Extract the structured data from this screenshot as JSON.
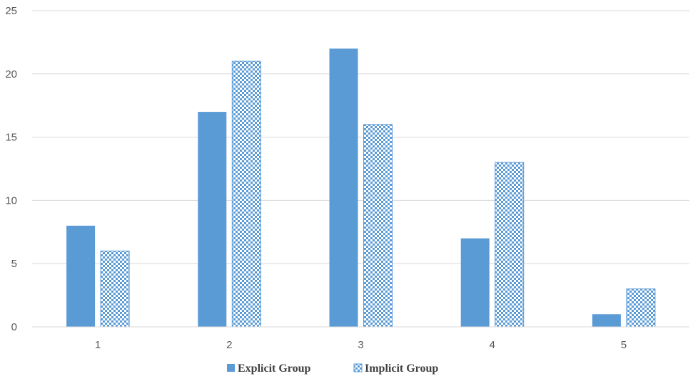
{
  "chart_data": {
    "type": "bar",
    "title": "",
    "xlabel": "",
    "ylabel": "",
    "categories": [
      "1",
      "2",
      "3",
      "4",
      "5"
    ],
    "series": [
      {
        "name": "Explicit Group",
        "values": [
          8,
          17,
          22,
          7,
          1
        ],
        "pattern": "solid"
      },
      {
        "name": "Implicit Group",
        "values": [
          6,
          21,
          16,
          13,
          3
        ],
        "pattern": "checkerboard"
      }
    ],
    "ylim": [
      0,
      25
    ],
    "yticks": [
      "0",
      "5",
      "10",
      "15",
      "20",
      "25"
    ],
    "grid": true,
    "legend": "bottom",
    "colors": {
      "bar": "#5b9bd5",
      "grid": "#d9d9d9",
      "pattern_light": "#ffffff"
    }
  }
}
